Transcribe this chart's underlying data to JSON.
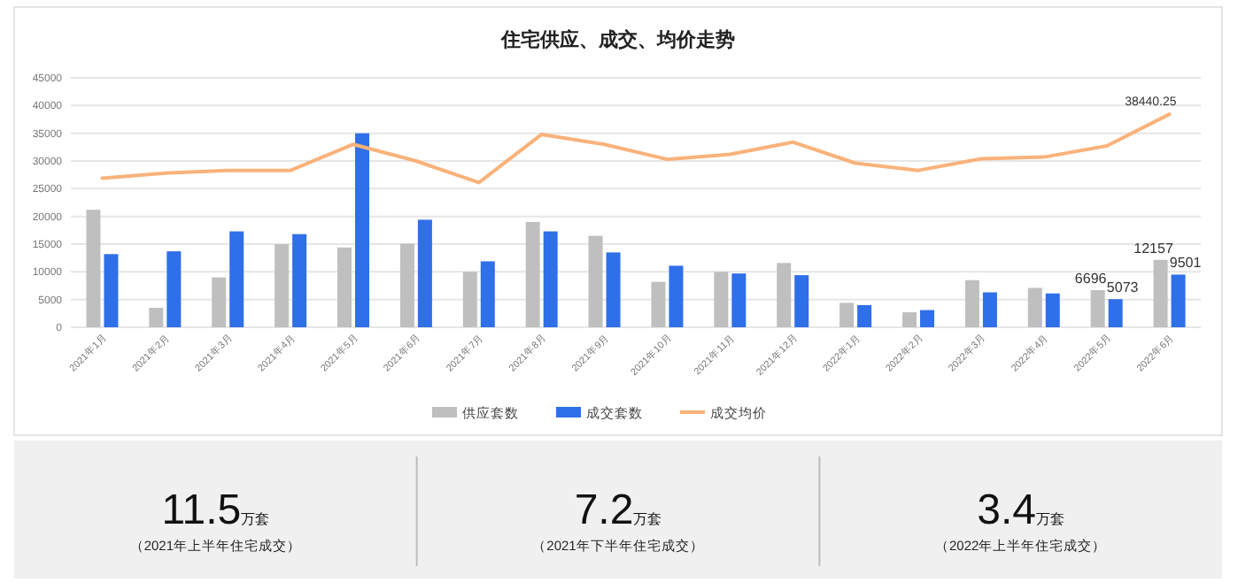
{
  "chart_data": [
    {
      "type": "bar",
      "title": "住宅供应、成交、均价走势",
      "categories": [
        "2021年1月",
        "2021年2月",
        "2021年3月",
        "2021年4月",
        "2021年5月",
        "2021年6月",
        "2021年7月",
        "2021年8月",
        "2021年9月",
        "2021年10月",
        "2021年11月",
        "2021年12月",
        "2022年1月",
        "2022年2月",
        "2022年3月",
        "2022年4月",
        "2022年5月",
        "2022年6月"
      ],
      "series": [
        {
          "name": "供应套数",
          "type": "bar",
          "color": "#bfbfbf",
          "values": [
            21200,
            3500,
            9000,
            15000,
            14400,
            15100,
            10000,
            19000,
            16500,
            8200,
            10000,
            11600,
            4400,
            2700,
            8500,
            7100,
            6696,
            12157
          ],
          "value_labels": [
            null,
            null,
            null,
            null,
            null,
            null,
            null,
            null,
            null,
            null,
            null,
            null,
            null,
            null,
            null,
            null,
            "6696",
            "12157"
          ]
        },
        {
          "name": "成交套数",
          "type": "bar",
          "color": "#2f6fe8",
          "values": [
            13200,
            13700,
            17300,
            16800,
            35000,
            19400,
            11900,
            17300,
            13500,
            11100,
            9700,
            9400,
            4000,
            3100,
            6300,
            6100,
            5073,
            9501
          ],
          "value_labels": [
            null,
            null,
            null,
            null,
            null,
            null,
            null,
            null,
            null,
            null,
            null,
            null,
            null,
            null,
            null,
            null,
            "5073",
            "9501"
          ]
        },
        {
          "name": "成交均价",
          "type": "line",
          "color": "#f9b27a",
          "values": [
            26900,
            27800,
            28300,
            28300,
            33000,
            30000,
            26100,
            34800,
            33000,
            30300,
            31200,
            33400,
            29600,
            28300,
            30400,
            30700,
            32700,
            38440.25
          ],
          "value_labels": [
            null,
            null,
            null,
            null,
            null,
            null,
            null,
            null,
            null,
            null,
            null,
            null,
            null,
            null,
            null,
            null,
            null,
            "38440.25"
          ]
        }
      ],
      "ylim": [
        0,
        45000
      ],
      "yticks": [
        0,
        5000,
        10000,
        15000,
        20000,
        25000,
        30000,
        35000,
        40000,
        45000
      ],
      "grid": "y",
      "legend": "bottom",
      "marker": "none"
    },
    {
      "type": "other",
      "annotations": [
        "11.5",
        "万套",
        "（2021年上半年住宅成交）",
        "7.2",
        "万套",
        "（2021年下半年住宅成交）",
        "3.4",
        "万套",
        "（2022年上半年住宅成交）"
      ]
    }
  ]
}
